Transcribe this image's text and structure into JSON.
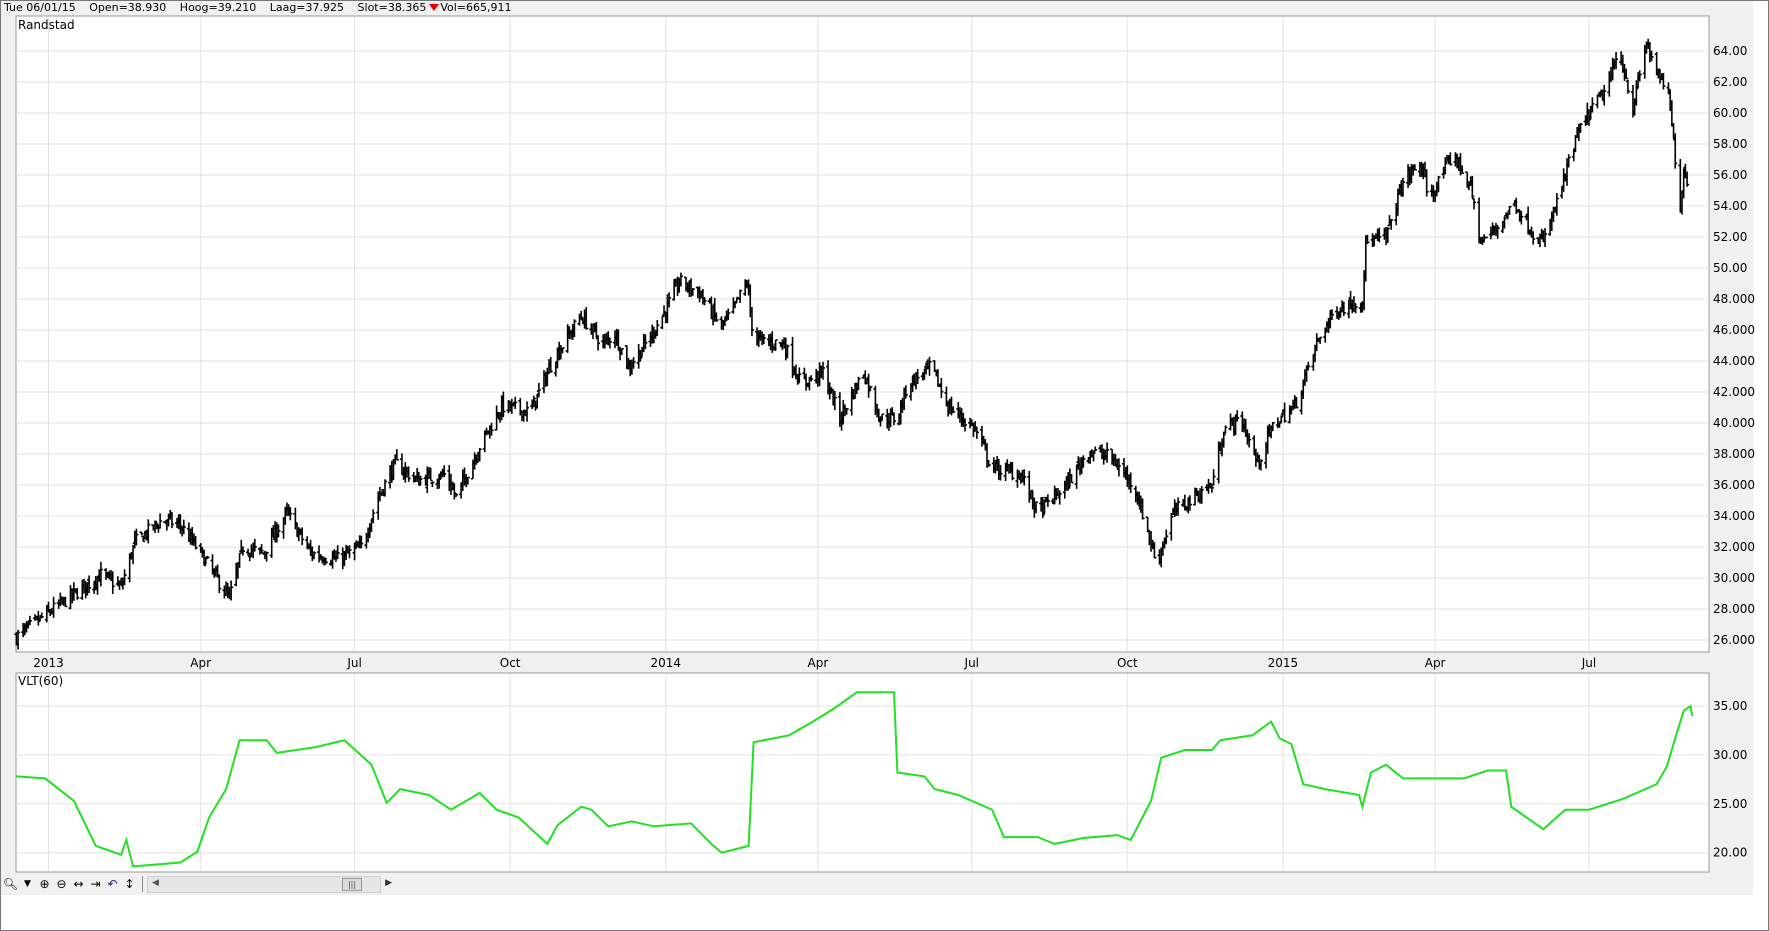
{
  "header": {
    "date": "Tue 06/01/15",
    "open": "Open=38.930",
    "high": "Hoog=39.210",
    "low": "Laag=37.925",
    "close": "Slot=38.365",
    "volume": "Vol=665,911",
    "down_indicator_color": "#e00000"
  },
  "toolbar": {
    "icons": [
      "zoom-icon",
      "dropdown-icon",
      "zoom-in-icon",
      "zoom-out-icon",
      "fit-horizontal-icon",
      "scroll-to-end-icon",
      "undo-icon",
      "fit-vertical-icon"
    ],
    "scroll_thumb_glyph": "|||"
  },
  "chart_data": [
    {
      "type": "ohlc",
      "title": "Randstad",
      "color": "#000000",
      "ylim": [
        25,
        65
      ],
      "y_ticks": [
        "64.00",
        "62.00",
        "60.00",
        "58.00",
        "56.00",
        "54.00",
        "52.00",
        "50.00",
        "48.000",
        "46.000",
        "44.000",
        "42.000",
        "40.000",
        "38.000",
        "36.000",
        "34.000",
        "32.000",
        "30.000",
        "28.000",
        "26.000"
      ],
      "y_tick_values": [
        64,
        62,
        60,
        58,
        56,
        54,
        52,
        50,
        48,
        46,
        44,
        42,
        40,
        38,
        36,
        34,
        32,
        30,
        28,
        26
      ],
      "x_ticks": [
        {
          "label": "2013",
          "date": "2013-01-01"
        },
        {
          "label": "Apr",
          "date": "2013-04-01"
        },
        {
          "label": "Jul",
          "date": "2013-07-01"
        },
        {
          "label": "Oct",
          "date": "2013-10-01"
        },
        {
          "label": "2014",
          "date": "2014-01-01"
        },
        {
          "label": "Apr",
          "date": "2014-04-01"
        },
        {
          "label": "Jul",
          "date": "2014-07-01"
        },
        {
          "label": "Oct",
          "date": "2014-10-01"
        },
        {
          "label": "2015",
          "date": "2015-01-01"
        },
        {
          "label": "Apr",
          "date": "2015-04-01"
        },
        {
          "label": "Jul",
          "date": "2015-07-01"
        }
      ],
      "grid": true,
      "axis_side": "right",
      "close_points": [
        [
          "2012-12-13",
          26.2
        ],
        [
          "2012-12-30",
          27.6
        ],
        [
          "2013-02-01",
          30.2
        ],
        [
          "2013-02-13",
          29.4
        ],
        [
          "2013-02-21",
          32.3
        ],
        [
          "2013-03-10",
          33.8
        ],
        [
          "2013-03-20",
          33.4
        ],
        [
          "2013-04-01",
          31.6
        ],
        [
          "2013-04-18",
          28.7
        ],
        [
          "2013-04-26",
          32.0
        ],
        [
          "2013-05-08",
          31.6
        ],
        [
          "2013-05-22",
          34.2
        ],
        [
          "2013-06-05",
          31.6
        ],
        [
          "2013-06-21",
          31.2
        ],
        [
          "2013-07-05",
          32.0
        ],
        [
          "2013-07-15",
          35.2
        ],
        [
          "2013-07-25",
          37.4
        ],
        [
          "2013-08-07",
          36.3
        ],
        [
          "2013-08-24",
          36.7
        ],
        [
          "2013-08-30",
          35.2
        ],
        [
          "2013-09-13",
          38.5
        ],
        [
          "2013-09-26",
          41.1
        ],
        [
          "2013-10-13",
          40.7
        ],
        [
          "2013-10-26",
          44.0
        ],
        [
          "2013-11-12",
          46.9
        ],
        [
          "2013-11-25",
          45.1
        ],
        [
          "2013-12-02",
          45.8
        ],
        [
          "2013-12-10",
          43.6
        ],
        [
          "2013-12-22",
          45.4
        ],
        [
          "2014-01-01",
          47.3
        ],
        [
          "2014-01-09",
          49.1
        ],
        [
          "2014-01-21",
          48.4
        ],
        [
          "2014-02-03",
          46.2
        ],
        [
          "2014-02-10",
          47.3
        ],
        [
          "2014-02-18",
          49.1
        ],
        [
          "2014-02-22",
          45.4
        ],
        [
          "2014-03-12",
          45.1
        ],
        [
          "2014-03-22",
          42.5
        ],
        [
          "2014-04-04",
          43.3
        ],
        [
          "2014-04-14",
          40.3
        ],
        [
          "2014-04-28",
          43.3
        ],
        [
          "2014-05-08",
          40.3
        ],
        [
          "2014-05-18",
          40.3
        ],
        [
          "2014-05-24",
          42.5
        ],
        [
          "2014-06-07",
          43.6
        ],
        [
          "2014-06-17",
          41.1
        ],
        [
          "2014-07-03",
          39.6
        ],
        [
          "2014-07-13",
          37.1
        ],
        [
          "2014-07-30",
          36.7
        ],
        [
          "2014-08-09",
          34.2
        ],
        [
          "2014-08-26",
          36.0
        ],
        [
          "2014-09-08",
          38.2
        ],
        [
          "2014-09-21",
          37.8
        ],
        [
          "2014-10-05",
          36.0
        ],
        [
          "2014-10-15",
          32.3
        ],
        [
          "2014-10-18",
          30.9
        ],
        [
          "2014-10-28",
          34.2
        ],
        [
          "2014-11-10",
          35.3
        ],
        [
          "2014-11-20",
          36.0
        ],
        [
          "2014-11-27",
          39.6
        ],
        [
          "2014-12-07",
          40.3
        ],
        [
          "2014-12-17",
          37.4
        ],
        [
          "2014-12-27",
          40.0
        ],
        [
          "2015-01-08",
          41.1
        ],
        [
          "2015-01-22",
          45.4
        ],
        [
          "2015-02-01",
          47.3
        ],
        [
          "2015-02-17",
          48.0
        ],
        [
          "2015-02-19",
          51.6
        ],
        [
          "2015-03-03",
          52.0
        ],
        [
          "2015-03-13",
          55.6
        ],
        [
          "2015-03-23",
          56.7
        ],
        [
          "2015-03-29",
          54.5
        ],
        [
          "2015-04-12",
          57.4
        ],
        [
          "2015-04-22",
          55.2
        ],
        [
          "2015-04-28",
          51.6
        ],
        [
          "2015-05-08",
          52.7
        ],
        [
          "2015-05-18",
          54.2
        ],
        [
          "2015-05-28",
          52.4
        ],
        [
          "2015-06-04",
          51.6
        ],
        [
          "2015-06-14",
          54.9
        ],
        [
          "2015-06-24",
          58.5
        ],
        [
          "2015-07-01",
          60.0
        ],
        [
          "2015-07-11",
          61.5
        ],
        [
          "2015-07-19",
          64.0
        ],
        [
          "2015-07-27",
          60.4
        ],
        [
          "2015-08-04",
          64.5
        ],
        [
          "2015-08-13",
          61.8
        ],
        [
          "2015-08-16",
          62.2
        ],
        [
          "2015-08-21",
          57.1
        ],
        [
          "2015-08-23",
          52.7
        ],
        [
          "2015-08-26",
          56.4
        ],
        [
          "2015-08-31",
          54.5
        ]
      ]
    },
    {
      "type": "line",
      "title": "VLT(60)",
      "color": "#22e022",
      "ylim": [
        18,
        37
      ],
      "y_ticks": [
        "35.00",
        "30.00",
        "25.00",
        "20.00"
      ],
      "y_tick_values": [
        35,
        30,
        25,
        20
      ],
      "grid": true,
      "axis_side": "right",
      "points": [
        [
          "2012-12-13",
          27.8
        ],
        [
          "2012-12-30",
          27.6
        ],
        [
          "2013-01-16",
          25.3
        ],
        [
          "2013-01-29",
          20.7
        ],
        [
          "2013-02-13",
          19.8
        ],
        [
          "2013-02-16",
          21.3
        ],
        [
          "2013-02-20",
          18.6
        ],
        [
          "2013-03-20",
          19.0
        ],
        [
          "2013-03-30",
          20.1
        ],
        [
          "2013-04-06",
          23.6
        ],
        [
          "2013-04-16",
          26.5
        ],
        [
          "2013-04-24",
          31.5
        ],
        [
          "2013-05-10",
          31.5
        ],
        [
          "2013-05-16",
          30.2
        ],
        [
          "2013-06-08",
          30.8
        ],
        [
          "2013-06-25",
          31.5
        ],
        [
          "2013-07-11",
          29.0
        ],
        [
          "2013-07-20",
          25.1
        ],
        [
          "2013-07-28",
          26.5
        ],
        [
          "2013-08-14",
          25.9
        ],
        [
          "2013-08-27",
          24.4
        ],
        [
          "2013-09-13",
          26.1
        ],
        [
          "2013-09-23",
          24.4
        ],
        [
          "2013-10-06",
          23.6
        ],
        [
          "2013-10-23",
          20.9
        ],
        [
          "2013-10-29",
          22.8
        ],
        [
          "2013-11-12",
          24.7
        ],
        [
          "2013-11-18",
          24.4
        ],
        [
          "2013-11-28",
          22.7
        ],
        [
          "2013-12-12",
          23.2
        ],
        [
          "2013-12-25",
          22.7
        ],
        [
          "2014-01-16",
          23.0
        ],
        [
          "2014-01-28",
          20.9
        ],
        [
          "2014-02-03",
          20.0
        ],
        [
          "2014-02-19",
          20.7
        ],
        [
          "2014-02-22",
          31.3
        ],
        [
          "2014-03-15",
          32.0
        ],
        [
          "2014-03-29",
          33.4
        ],
        [
          "2014-04-11",
          34.8
        ],
        [
          "2014-04-24",
          36.4
        ],
        [
          "2014-05-16",
          36.4
        ],
        [
          "2014-05-18",
          28.2
        ],
        [
          "2014-06-03",
          27.8
        ],
        [
          "2014-06-09",
          26.5
        ],
        [
          "2014-06-23",
          25.9
        ],
        [
          "2014-07-13",
          24.4
        ],
        [
          "2014-07-20",
          21.6
        ],
        [
          "2014-08-09",
          21.6
        ],
        [
          "2014-08-19",
          20.9
        ],
        [
          "2014-09-05",
          21.5
        ],
        [
          "2014-09-25",
          21.8
        ],
        [
          "2014-10-03",
          21.3
        ],
        [
          "2014-10-15",
          25.3
        ],
        [
          "2014-10-21",
          29.7
        ],
        [
          "2014-11-04",
          30.5
        ],
        [
          "2014-11-20",
          30.5
        ],
        [
          "2014-11-25",
          31.5
        ],
        [
          "2014-12-14",
          32.0
        ],
        [
          "2014-12-25",
          33.4
        ],
        [
          "2014-12-30",
          31.7
        ],
        [
          "2015-01-06",
          31.1
        ],
        [
          "2015-01-13",
          27.0
        ],
        [
          "2015-01-26",
          26.5
        ],
        [
          "2015-02-15",
          25.9
        ],
        [
          "2015-02-17",
          24.7
        ],
        [
          "2015-02-22",
          28.2
        ],
        [
          "2015-03-03",
          29.0
        ],
        [
          "2015-03-13",
          27.6
        ],
        [
          "2015-03-29",
          27.6
        ],
        [
          "2015-04-18",
          27.6
        ],
        [
          "2015-05-02",
          28.4
        ],
        [
          "2015-05-13",
          28.4
        ],
        [
          "2015-05-16",
          24.7
        ],
        [
          "2015-06-04",
          22.4
        ],
        [
          "2015-06-17",
          24.4
        ],
        [
          "2015-07-01",
          24.4
        ],
        [
          "2015-07-21",
          25.5
        ],
        [
          "2015-08-10",
          27.0
        ],
        [
          "2015-08-16",
          28.8
        ],
        [
          "2015-08-21",
          31.7
        ],
        [
          "2015-08-26",
          34.5
        ],
        [
          "2015-08-30",
          35.0
        ],
        [
          "2015-08-31",
          34.0
        ]
      ]
    }
  ]
}
